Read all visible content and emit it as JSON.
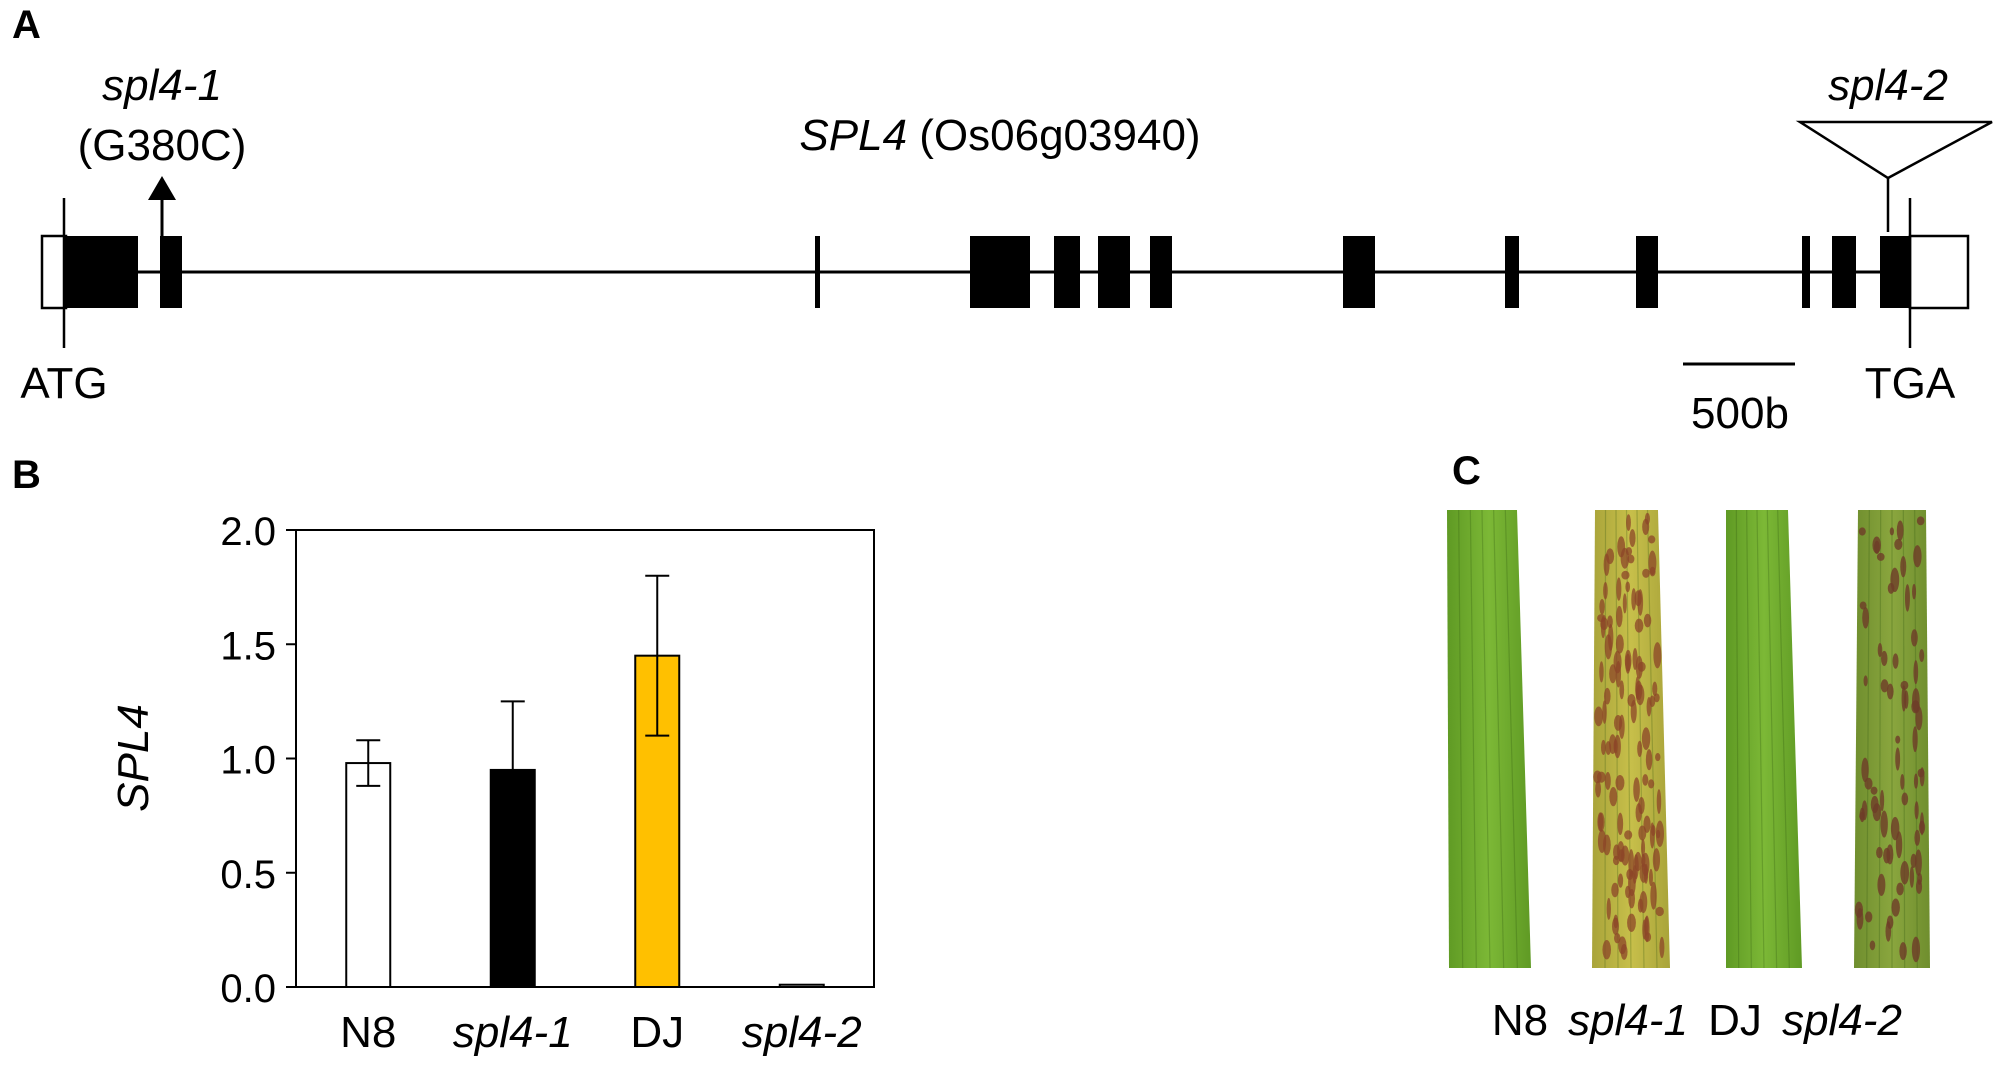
{
  "panel_a": {
    "letter": "A",
    "gene_name": "SPL4",
    "gene_id": " (Os06g03940)",
    "mutation1_name": "spl4-1",
    "mutation1_detail": "(G380C)",
    "mutation2_name": "spl4-2",
    "start_codon": "ATG",
    "stop_codon": "TGA",
    "scale_label": "500b"
  },
  "panel_b": {
    "letter": "B"
  },
  "panel_c": {
    "letter": "C",
    "leaves": [
      {
        "label": "N8",
        "italic": false,
        "phenotype": "healthy",
        "color": "#6aa52a"
      },
      {
        "label": "spl4-1",
        "italic": true,
        "phenotype": "lesion",
        "color": "#b8b23e"
      },
      {
        "label": "DJ",
        "italic": false,
        "phenotype": "healthy",
        "color": "#6fae2c"
      },
      {
        "label": "spl4-2",
        "italic": true,
        "phenotype": "lesion",
        "color": "#7f9a36"
      }
    ]
  },
  "chart_data": {
    "type": "bar",
    "title": "",
    "xlabel": "",
    "ylabel": "SPL4",
    "ylim": [
      0,
      2.0
    ],
    "yticks": [
      "0.0",
      "0.5",
      "1.0",
      "1.5",
      "2.0"
    ],
    "categories": [
      "N8",
      "spl4-1",
      "DJ",
      "spl4-2"
    ],
    "italic_categories": [
      false,
      true,
      false,
      true
    ],
    "values": [
      0.98,
      0.95,
      1.45,
      0.01
    ],
    "errors": [
      0.1,
      0.3,
      0.35,
      0.0
    ],
    "bar_colors": [
      "#ffffff",
      "#000000",
      "#ffc000",
      "#ffffff"
    ],
    "grid": false,
    "legend": "none"
  }
}
